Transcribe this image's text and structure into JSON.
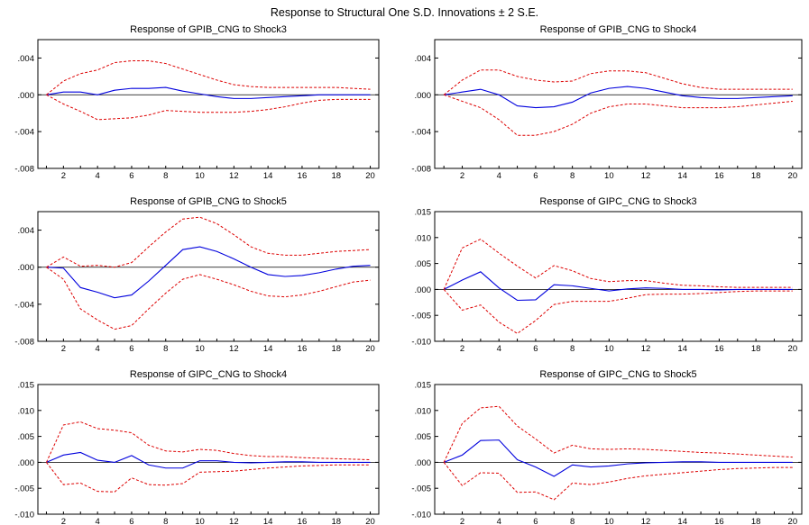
{
  "title": "Response to Structural One S.D. Innovations ± 2 S.E.",
  "colors": {
    "response": "#0000dd",
    "band": "#dd0000",
    "axis": "#000000"
  },
  "chart_data": [
    {
      "type": "line",
      "title": "Response of GPIB_CNG to Shock3",
      "x": [
        1,
        2,
        3,
        4,
        5,
        6,
        7,
        8,
        9,
        10,
        11,
        12,
        13,
        14,
        15,
        16,
        17,
        18,
        19,
        20
      ],
      "xticks": [
        2,
        4,
        6,
        8,
        10,
        12,
        14,
        16,
        18,
        20
      ],
      "ylim": [
        -0.008,
        0.006
      ],
      "yticks": [
        -0.008,
        -0.004,
        0.0,
        0.004
      ],
      "ytick_labels": [
        "-.008",
        "-.004",
        ".000",
        ".004"
      ],
      "series": [
        {
          "role": "response",
          "values": [
            0,
            0.0003,
            0.0003,
            0.0,
            0.0005,
            0.0007,
            0.0007,
            0.0008,
            0.0004,
            0.0001,
            -0.0002,
            -0.0004,
            -0.0004,
            -0.0003,
            -0.0002,
            -0.0001,
            0.0,
            0.0,
            0.0,
            0.0
          ]
        },
        {
          "role": "upper",
          "values": [
            0,
            0.0015,
            0.0023,
            0.0027,
            0.0035,
            0.0037,
            0.0037,
            0.0034,
            0.0028,
            0.0022,
            0.0016,
            0.0011,
            0.0009,
            0.0008,
            0.0008,
            0.0008,
            0.0008,
            0.0008,
            0.0007,
            0.0006
          ]
        },
        {
          "role": "lower",
          "values": [
            0,
            -0.001,
            -0.0018,
            -0.0027,
            -0.0026,
            -0.0025,
            -0.0022,
            -0.0017,
            -0.0018,
            -0.0019,
            -0.0019,
            -0.0019,
            -0.0018,
            -0.0016,
            -0.0013,
            -0.0009,
            -0.0006,
            -0.0005,
            -0.0005,
            -0.0005
          ]
        }
      ]
    },
    {
      "type": "line",
      "title": "Response of GPIB_CNG to Shock4",
      "x": [
        1,
        2,
        3,
        4,
        5,
        6,
        7,
        8,
        9,
        10,
        11,
        12,
        13,
        14,
        15,
        16,
        17,
        18,
        19,
        20
      ],
      "xticks": [
        2,
        4,
        6,
        8,
        10,
        12,
        14,
        16,
        18,
        20
      ],
      "ylim": [
        -0.008,
        0.006
      ],
      "yticks": [
        -0.008,
        -0.004,
        0.0,
        0.004
      ],
      "ytick_labels": [
        "-.008",
        "-.004",
        ".000",
        ".004"
      ],
      "series": [
        {
          "role": "response",
          "values": [
            0,
            0.0003,
            0.0006,
            0.0,
            -0.0012,
            -0.0014,
            -0.0013,
            -0.0008,
            0.0002,
            0.0007,
            0.0009,
            0.0007,
            0.0003,
            -0.0001,
            -0.0003,
            -0.0004,
            -0.0004,
            -0.0003,
            -0.0002,
            -0.0001
          ]
        },
        {
          "role": "upper",
          "values": [
            0,
            0.0016,
            0.0027,
            0.0027,
            0.002,
            0.0016,
            0.0014,
            0.0015,
            0.0023,
            0.0026,
            0.0026,
            0.0024,
            0.0018,
            0.0012,
            0.0008,
            0.0006,
            0.0006,
            0.0006,
            0.0006,
            0.0006
          ]
        },
        {
          "role": "lower",
          "values": [
            0,
            -0.0007,
            -0.0014,
            -0.0027,
            -0.0044,
            -0.0044,
            -0.004,
            -0.0032,
            -0.002,
            -0.0013,
            -0.001,
            -0.001,
            -0.0012,
            -0.0014,
            -0.0014,
            -0.0014,
            -0.0013,
            -0.0011,
            -0.0009,
            -0.0007
          ]
        }
      ]
    },
    {
      "type": "line",
      "title": "Response of GPIB_CNG to Shock5",
      "x": [
        1,
        2,
        3,
        4,
        5,
        6,
        7,
        8,
        9,
        10,
        11,
        12,
        13,
        14,
        15,
        16,
        17,
        18,
        19,
        20
      ],
      "xticks": [
        2,
        4,
        6,
        8,
        10,
        12,
        14,
        16,
        18,
        20
      ],
      "ylim": [
        -0.008,
        0.006
      ],
      "yticks": [
        -0.008,
        -0.004,
        0.0,
        0.004
      ],
      "ytick_labels": [
        "-.008",
        "-.004",
        ".000",
        ".004"
      ],
      "series": [
        {
          "role": "response",
          "values": [
            0,
            -0.0001,
            -0.0022,
            -0.0027,
            -0.0033,
            -0.003,
            -0.0015,
            0.0002,
            0.0019,
            0.0022,
            0.0017,
            0.0009,
            0.0,
            -0.0008,
            -0.001,
            -0.0009,
            -0.0006,
            -0.0002,
            0.0001,
            0.0002
          ]
        },
        {
          "role": "upper",
          "values": [
            0,
            0.0011,
            0.0001,
            0.0002,
            0.0,
            0.0005,
            0.0022,
            0.0038,
            0.0052,
            0.0054,
            0.0047,
            0.0035,
            0.0022,
            0.0015,
            0.0013,
            0.0013,
            0.0015,
            0.0017,
            0.0018,
            0.0019
          ]
        },
        {
          "role": "lower",
          "values": [
            0,
            -0.0013,
            -0.0045,
            -0.0057,
            -0.0067,
            -0.0063,
            -0.0045,
            -0.0028,
            -0.0013,
            -0.0008,
            -0.0013,
            -0.0019,
            -0.0026,
            -0.0031,
            -0.0032,
            -0.003,
            -0.0026,
            -0.0021,
            -0.0016,
            -0.0014
          ]
        }
      ]
    },
    {
      "type": "line",
      "title": "Response of GIPC_CNG to Shock3",
      "x": [
        1,
        2,
        3,
        4,
        5,
        6,
        7,
        8,
        9,
        10,
        11,
        12,
        13,
        14,
        15,
        16,
        17,
        18,
        19,
        20
      ],
      "xticks": [
        2,
        4,
        6,
        8,
        10,
        12,
        14,
        16,
        18,
        20
      ],
      "ylim": [
        -0.01,
        0.015
      ],
      "yticks": [
        -0.01,
        -0.005,
        0.0,
        0.005,
        0.01,
        0.015
      ],
      "ytick_labels": [
        "-.010",
        "-.005",
        ".000",
        ".005",
        ".010",
        ".015"
      ],
      "series": [
        {
          "role": "response",
          "values": [
            0,
            0.0018,
            0.0034,
            0.0003,
            -0.0021,
            -0.002,
            0.0009,
            0.0007,
            0.0002,
            -0.0003,
            0.0001,
            0.0003,
            0.0002,
            0.0,
            0.0,
            -0.0001,
            0.0,
            0.0,
            0.0,
            0.0
          ]
        },
        {
          "role": "upper",
          "values": [
            0,
            0.008,
            0.0097,
            0.007,
            0.0045,
            0.0022,
            0.0046,
            0.0036,
            0.0021,
            0.0015,
            0.0017,
            0.0017,
            0.0012,
            0.0008,
            0.0007,
            0.0005,
            0.0004,
            0.0004,
            0.0004,
            0.0004
          ]
        },
        {
          "role": "lower",
          "values": [
            0,
            -0.004,
            -0.003,
            -0.0063,
            -0.0085,
            -0.006,
            -0.0029,
            -0.0023,
            -0.0023,
            -0.0023,
            -0.0017,
            -0.001,
            -0.0009,
            -0.0009,
            -0.0008,
            -0.0006,
            -0.0004,
            -0.0003,
            -0.0003,
            -0.0003
          ]
        }
      ]
    },
    {
      "type": "line",
      "title": "Response of GIPC_CNG to Shock4",
      "x": [
        1,
        2,
        3,
        4,
        5,
        6,
        7,
        8,
        9,
        10,
        11,
        12,
        13,
        14,
        15,
        16,
        17,
        18,
        19,
        20
      ],
      "xticks": [
        2,
        4,
        6,
        8,
        10,
        12,
        14,
        16,
        18,
        20
      ],
      "ylim": [
        -0.01,
        0.015
      ],
      "yticks": [
        -0.01,
        -0.005,
        0.0,
        0.005,
        0.01,
        0.015
      ],
      "ytick_labels": [
        "-.010",
        "-.005",
        ".000",
        ".005",
        ".010",
        ".015"
      ],
      "series": [
        {
          "role": "response",
          "values": [
            0,
            0.0014,
            0.0019,
            0.0004,
            0.0,
            0.0013,
            -0.0005,
            -0.0011,
            -0.0011,
            0.0003,
            0.0003,
            0.0,
            -0.0001,
            0.0,
            0.0001,
            0.0001,
            0.0,
            0.0,
            0.0,
            0.0
          ]
        },
        {
          "role": "upper",
          "values": [
            0,
            0.0072,
            0.0078,
            0.0065,
            0.0062,
            0.0057,
            0.0033,
            0.0022,
            0.002,
            0.0025,
            0.0023,
            0.0017,
            0.0013,
            0.0011,
            0.0011,
            0.0009,
            0.0008,
            0.0007,
            0.0006,
            0.0005
          ]
        },
        {
          "role": "lower",
          "values": [
            0,
            -0.0043,
            -0.004,
            -0.0056,
            -0.0057,
            -0.003,
            -0.0043,
            -0.0044,
            -0.0041,
            -0.0019,
            -0.0018,
            -0.0017,
            -0.0014,
            -0.0011,
            -0.0009,
            -0.0007,
            -0.0006,
            -0.0005,
            -0.0005,
            -0.0005
          ]
        }
      ]
    },
    {
      "type": "line",
      "title": "Response of GIPC_CNG to Shock5",
      "x": [
        1,
        2,
        3,
        4,
        5,
        6,
        7,
        8,
        9,
        10,
        11,
        12,
        13,
        14,
        15,
        16,
        17,
        18,
        19,
        20
      ],
      "xticks": [
        2,
        4,
        6,
        8,
        10,
        12,
        14,
        16,
        18,
        20
      ],
      "ylim": [
        -0.01,
        0.015
      ],
      "yticks": [
        -0.01,
        -0.005,
        0.0,
        0.005,
        0.01,
        0.015
      ],
      "ytick_labels": [
        "-.010",
        "-.005",
        ".000",
        ".005",
        ".010",
        ".015"
      ],
      "series": [
        {
          "role": "response",
          "values": [
            0,
            0.0014,
            0.0042,
            0.0043,
            0.0005,
            -0.0009,
            -0.0027,
            -0.0005,
            -0.0009,
            -0.0007,
            -0.0003,
            -0.0001,
            0.0,
            0.0001,
            0.0001,
            0.0,
            0.0,
            0.0,
            0.0,
            0.0
          ]
        },
        {
          "role": "upper",
          "values": [
            0,
            0.0075,
            0.0105,
            0.0108,
            0.007,
            0.0045,
            0.0018,
            0.0033,
            0.0026,
            0.0025,
            0.0026,
            0.0025,
            0.0023,
            0.0021,
            0.0019,
            0.0018,
            0.0016,
            0.0014,
            0.0012,
            0.001
          ]
        },
        {
          "role": "lower",
          "values": [
            0,
            -0.0045,
            -0.002,
            -0.0021,
            -0.0058,
            -0.0057,
            -0.0072,
            -0.004,
            -0.0043,
            -0.0038,
            -0.0031,
            -0.0026,
            -0.0023,
            -0.002,
            -0.0017,
            -0.0014,
            -0.0012,
            -0.0011,
            -0.001,
            -0.001
          ]
        }
      ]
    }
  ]
}
